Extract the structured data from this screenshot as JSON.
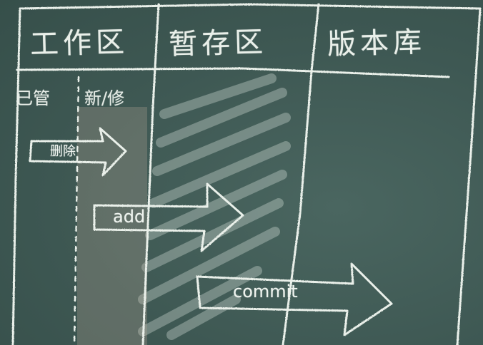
{
  "headers": {
    "working_area": "工作区",
    "staging_area": "暂存区",
    "repository": "版本库"
  },
  "working_area_sub": {
    "tracked": "已管",
    "new_modified": "新/修"
  },
  "arrows": {
    "first_label": "删除",
    "add_label": "add",
    "commit_label": "commit"
  },
  "colors": {
    "board": "#3f5a55",
    "chalk": "#e9efe9"
  }
}
